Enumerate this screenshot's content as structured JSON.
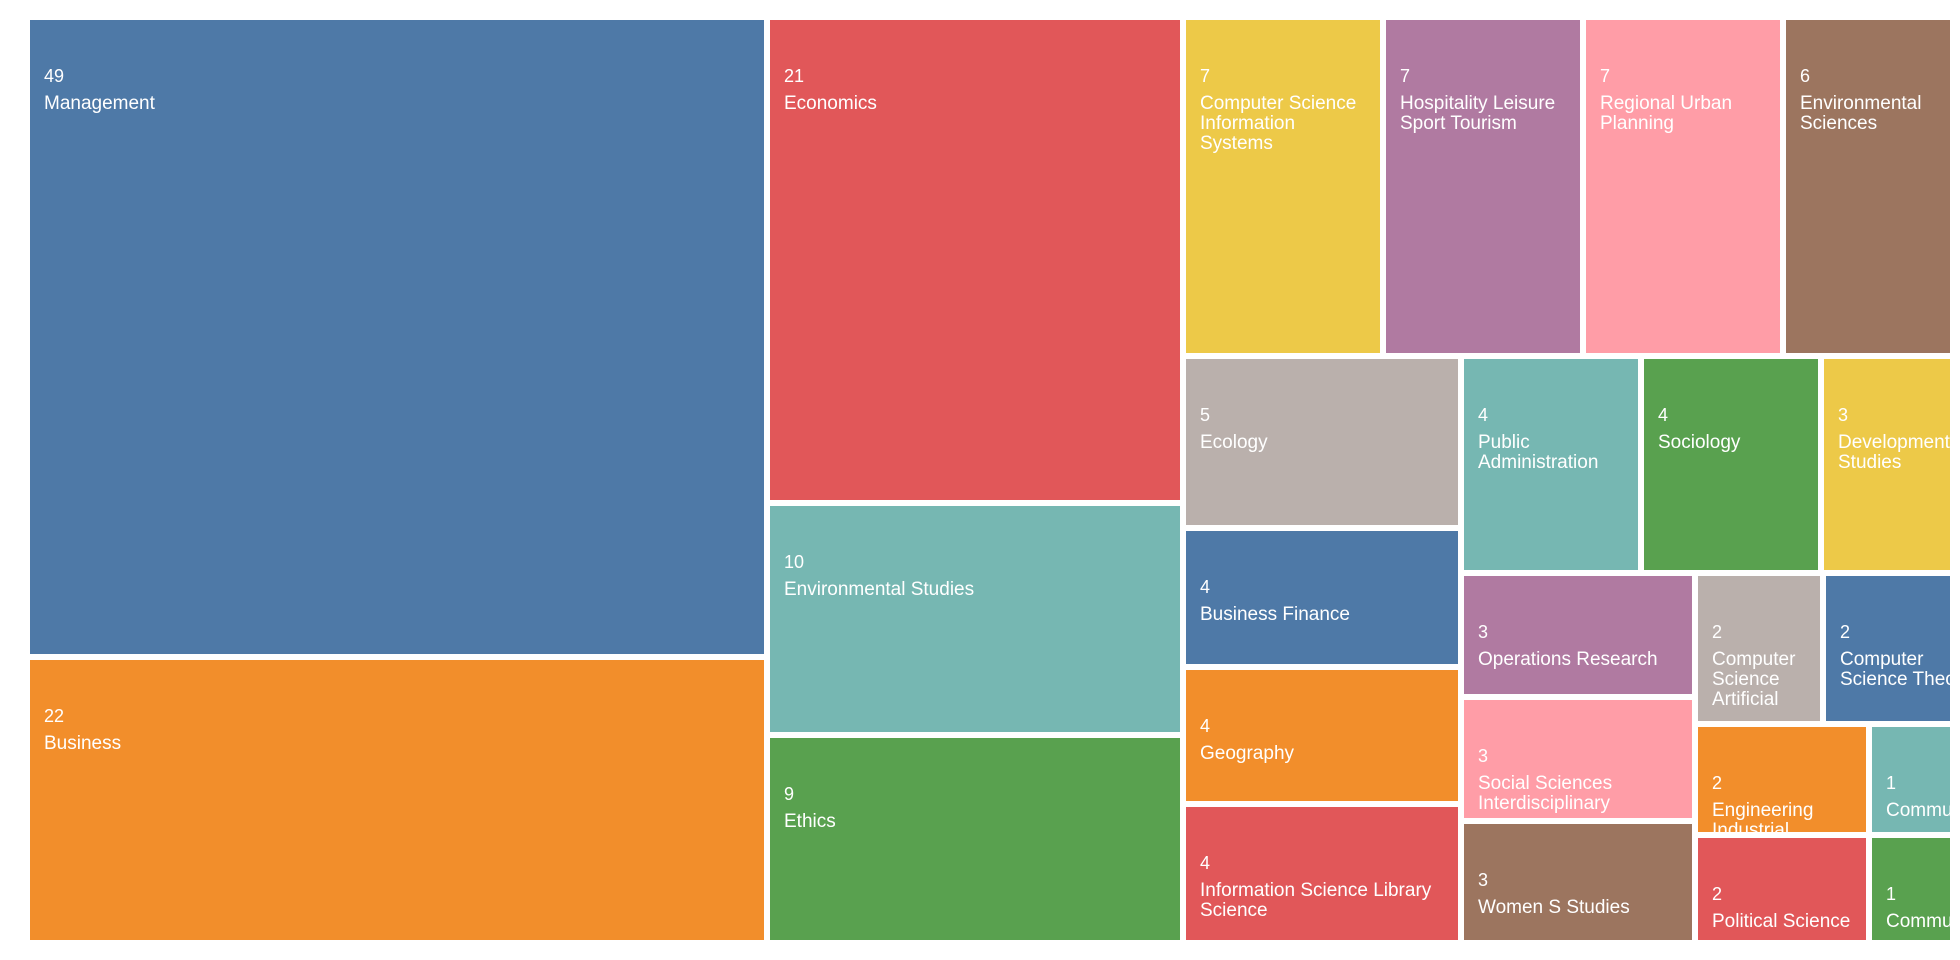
{
  "chart_data": {
    "type": "treemap",
    "title": "",
    "items": [
      {
        "label": "Management",
        "value": 49,
        "color": "#4e79a7"
      },
      {
        "label": "Business",
        "value": 22,
        "color": "#f28e2b"
      },
      {
        "label": "Economics",
        "value": 21,
        "color": "#e15759"
      },
      {
        "label": "Environmental Studies",
        "value": 10,
        "color": "#76b7b2"
      },
      {
        "label": "Ethics",
        "value": 9,
        "color": "#59a14f"
      },
      {
        "label": "Computer Science Information Systems",
        "value": 7,
        "color": "#edc948"
      },
      {
        "label": "Hospitality Leisure Sport Tourism",
        "value": 7,
        "color": "#b07aa1"
      },
      {
        "label": "Regional Urban Planning",
        "value": 7,
        "color": "#ff9da7"
      },
      {
        "label": "Environmental Sciences",
        "value": 6,
        "color": "#9c755f"
      },
      {
        "label": "Ecology",
        "value": 5,
        "color": "#bab0ac"
      },
      {
        "label": "Public Administration",
        "value": 4,
        "color": "#76b7b2"
      },
      {
        "label": "Sociology",
        "value": 4,
        "color": "#59a14f"
      },
      {
        "label": "Development Studies",
        "value": 3,
        "color": "#edc948"
      },
      {
        "label": "Business Finance",
        "value": 4,
        "color": "#4e79a7"
      },
      {
        "label": "Geography",
        "value": 4,
        "color": "#f28e2b"
      },
      {
        "label": "Information Science Library Science",
        "value": 4,
        "color": "#e15759"
      },
      {
        "label": "Operations Research",
        "value": 3,
        "color": "#b07aa1"
      },
      {
        "label": "Social Sciences Interdisciplinary",
        "value": 3,
        "color": "#ff9da7"
      },
      {
        "label": "Women S Studies",
        "value": 3,
        "color": "#9c755f"
      },
      {
        "label": "Computer Science Artificial",
        "value": 2,
        "color": "#bab0ac"
      },
      {
        "label": "Computer Science Theory",
        "value": 2,
        "color": "#4e79a7"
      },
      {
        "label": "Engineering Industrial",
        "value": 2,
        "color": "#f28e2b"
      },
      {
        "label": "Communication",
        "value": 1,
        "color": "#76b7b2"
      },
      {
        "label": "Political Science",
        "value": 2,
        "color": "#e15759"
      },
      {
        "label": "Communication",
        "value": 1,
        "color": "#59a14f"
      }
    ]
  }
}
